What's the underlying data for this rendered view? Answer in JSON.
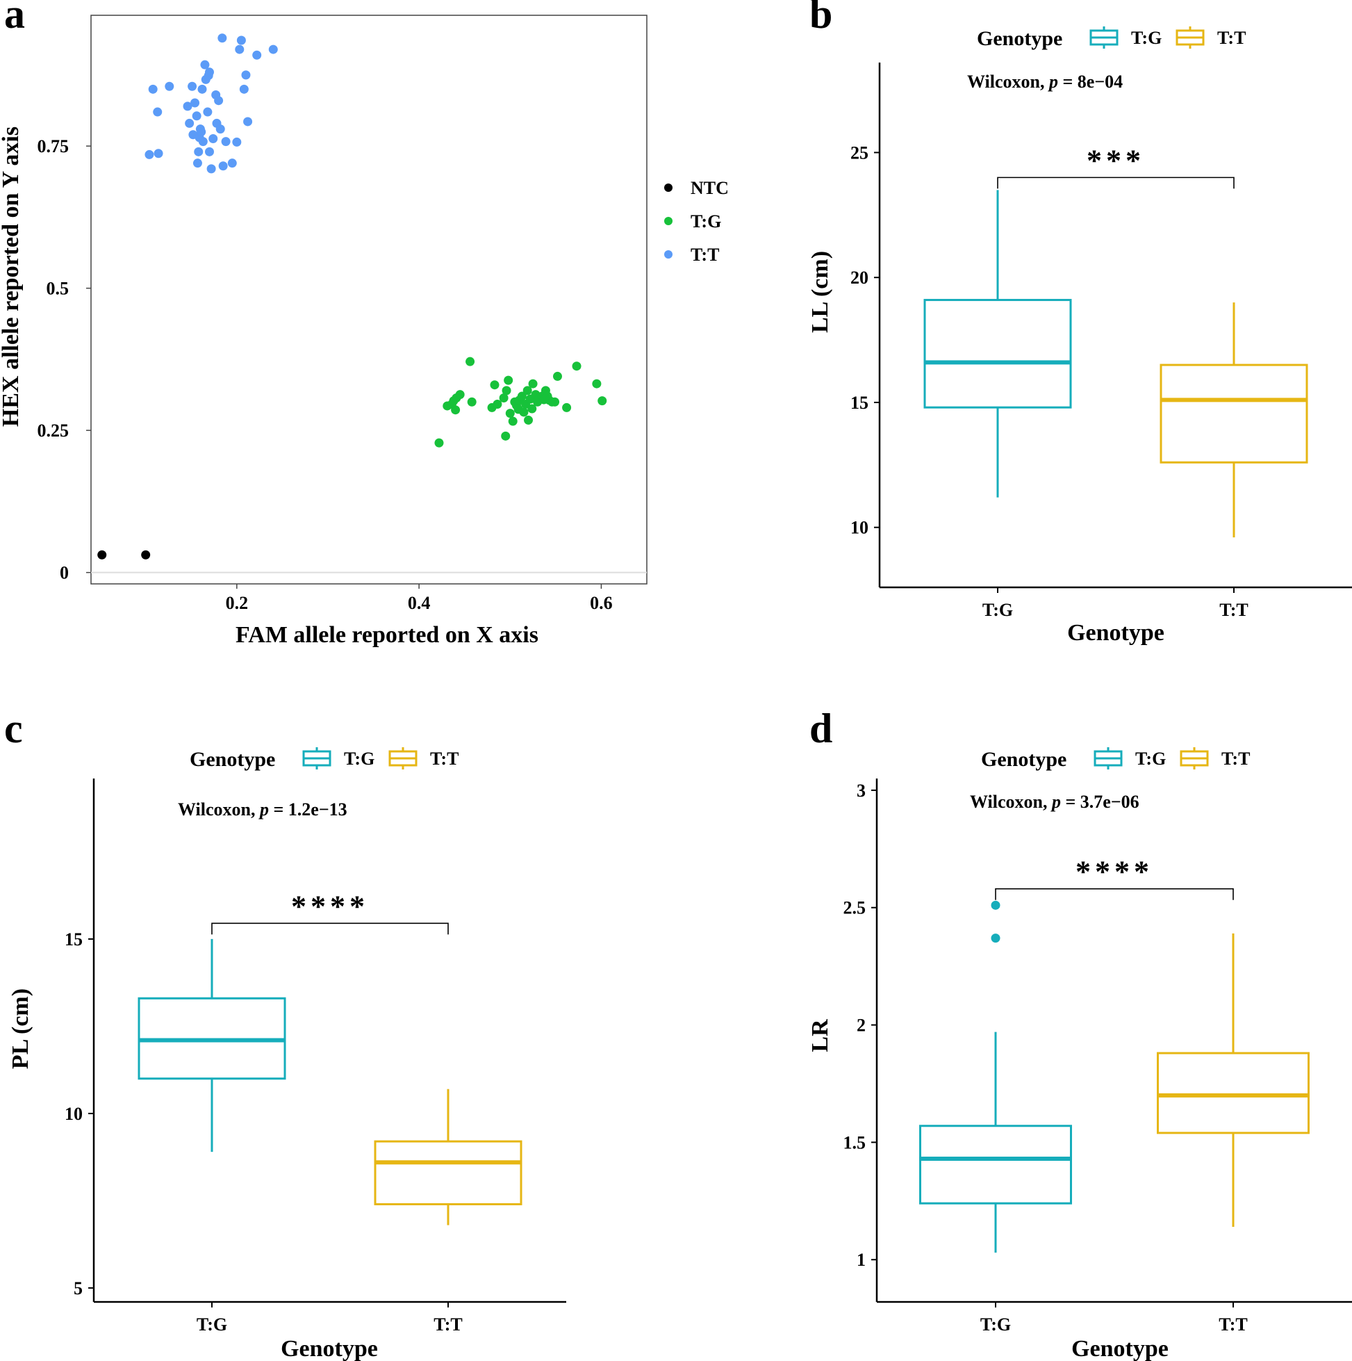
{
  "chart_data": [
    {
      "id": "a",
      "type": "scatter",
      "panel_label": "a",
      "xlabel": "FAM allele reported on X axis",
      "ylabel": "HEX allele reported on Y axis",
      "xlim": [
        0.04,
        0.65
      ],
      "ylim": [
        -0.02,
        0.98
      ],
      "xticks": [
        0.2,
        0.4,
        0.6
      ],
      "xtick_labels": [
        "0.2",
        "0.4",
        "0.6"
      ],
      "yticks": [
        0,
        0.25,
        0.5,
        0.75
      ],
      "ytick_labels": [
        "0",
        "0.25",
        "0.5",
        "0.75"
      ],
      "reference_line_y": 0,
      "legend": {
        "title": "",
        "position": "right"
      },
      "series": [
        {
          "name": "NTC",
          "color": "#000000",
          "points": [
            [
              0.052,
              0.031
            ],
            [
              0.1,
              0.031
            ]
          ]
        },
        {
          "name": "T:G",
          "color": "#17c13a",
          "points": [
            [
              0.422,
              0.228
            ],
            [
              0.431,
              0.293
            ],
            [
              0.436,
              0.296
            ],
            [
              0.438,
              0.302
            ],
            [
              0.44,
              0.286
            ],
            [
              0.441,
              0.307
            ],
            [
              0.445,
              0.313
            ],
            [
              0.456,
              0.371
            ],
            [
              0.458,
              0.3
            ],
            [
              0.48,
              0.29
            ],
            [
              0.483,
              0.33
            ],
            [
              0.486,
              0.296
            ],
            [
              0.493,
              0.307
            ],
            [
              0.495,
              0.24
            ],
            [
              0.496,
              0.32
            ],
            [
              0.498,
              0.338
            ],
            [
              0.5,
              0.28
            ],
            [
              0.503,
              0.266
            ],
            [
              0.505,
              0.3
            ],
            [
              0.507,
              0.294
            ],
            [
              0.509,
              0.287
            ],
            [
              0.51,
              0.303
            ],
            [
              0.513,
              0.31
            ],
            [
              0.515,
              0.282
            ],
            [
              0.517,
              0.296
            ],
            [
              0.519,
              0.32
            ],
            [
              0.52,
              0.268
            ],
            [
              0.522,
              0.305
            ],
            [
              0.524,
              0.288
            ],
            [
              0.525,
              0.332
            ],
            [
              0.528,
              0.313
            ],
            [
              0.53,
              0.3
            ],
            [
              0.532,
              0.307
            ],
            [
              0.535,
              0.31
            ],
            [
              0.537,
              0.304
            ],
            [
              0.539,
              0.32
            ],
            [
              0.541,
              0.31
            ],
            [
              0.543,
              0.303
            ],
            [
              0.546,
              0.3
            ],
            [
              0.549,
              0.3
            ],
            [
              0.552,
              0.345
            ],
            [
              0.562,
              0.29
            ],
            [
              0.573,
              0.363
            ],
            [
              0.595,
              0.332
            ],
            [
              0.601,
              0.302
            ]
          ]
        },
        {
          "name": "T:T",
          "color": "#5b9bf7",
          "points": [
            [
              0.104,
              0.735
            ],
            [
              0.108,
              0.85
            ],
            [
              0.113,
              0.81
            ],
            [
              0.114,
              0.737
            ],
            [
              0.126,
              0.855
            ],
            [
              0.146,
              0.82
            ],
            [
              0.148,
              0.79
            ],
            [
              0.151,
              0.855
            ],
            [
              0.152,
              0.77
            ],
            [
              0.154,
              0.826
            ],
            [
              0.156,
              0.803
            ],
            [
              0.157,
              0.72
            ],
            [
              0.158,
              0.74
            ],
            [
              0.159,
              0.765
            ],
            [
              0.16,
              0.78
            ],
            [
              0.161,
              0.775
            ],
            [
              0.162,
              0.85
            ],
            [
              0.163,
              0.758
            ],
            [
              0.165,
              0.893
            ],
            [
              0.166,
              0.867
            ],
            [
              0.168,
              0.81
            ],
            [
              0.169,
              0.874
            ],
            [
              0.17,
              0.88
            ],
            [
              0.17,
              0.74
            ],
            [
              0.172,
              0.71
            ],
            [
              0.174,
              0.763
            ],
            [
              0.177,
              0.84
            ],
            [
              0.178,
              0.79
            ],
            [
              0.18,
              0.83
            ],
            [
              0.182,
              0.78
            ],
            [
              0.184,
              0.94
            ],
            [
              0.185,
              0.715
            ],
            [
              0.188,
              0.758
            ],
            [
              0.195,
              0.72
            ],
            [
              0.2,
              0.757
            ],
            [
              0.203,
              0.92
            ],
            [
              0.205,
              0.936
            ],
            [
              0.208,
              0.85
            ],
            [
              0.21,
              0.875
            ],
            [
              0.212,
              0.793
            ],
            [
              0.222,
              0.91
            ],
            [
              0.24,
              0.92
            ]
          ]
        }
      ]
    },
    {
      "id": "b",
      "type": "boxplot",
      "panel_label": "b",
      "xlabel": "Genotype",
      "ylabel": "LL (cm)",
      "ylim": [
        7.6,
        28.6
      ],
      "yticks": [
        10,
        15,
        20,
        25
      ],
      "ytick_labels": [
        "10",
        "15",
        "20",
        "25"
      ],
      "legend": {
        "title": "Genotype",
        "position": "top",
        "labels": [
          "T:G",
          "T:T"
        ]
      },
      "annotation": {
        "method": "Wilcoxon",
        "p_label": "p",
        "p_value": " = 8e−04"
      },
      "significance": {
        "label": "***",
        "y": 24.0
      },
      "categories": [
        "T:G",
        "T:T"
      ],
      "boxes": [
        {
          "name": "T:G",
          "color": "#16adbb",
          "whisker_low": 11.2,
          "q1": 14.8,
          "median": 16.6,
          "q3": 19.1,
          "whisker_high": 23.5,
          "outliers": []
        },
        {
          "name": "T:T",
          "color": "#e6b614",
          "whisker_low": 9.6,
          "q1": 12.6,
          "median": 15.1,
          "q3": 16.5,
          "whisker_high": 19.0,
          "outliers": []
        }
      ]
    },
    {
      "id": "c",
      "type": "boxplot",
      "panel_label": "c",
      "xlabel": "Genotype",
      "ylabel": "PL (cm)",
      "ylim": [
        4.6,
        19.6
      ],
      "yticks": [
        5,
        10,
        15
      ],
      "ytick_labels": [
        "5",
        "10",
        "15"
      ],
      "legend": {
        "title": "Genotype",
        "position": "top",
        "labels": [
          "T:G",
          "T:T"
        ]
      },
      "annotation": {
        "method": "Wilcoxon",
        "p_label": "p",
        "p_value": " = 1.2e−13"
      },
      "significance": {
        "label": "****",
        "y": 15.45
      },
      "categories": [
        "T:G",
        "T:T"
      ],
      "boxes": [
        {
          "name": "T:G",
          "color": "#16adbb",
          "whisker_low": 8.9,
          "q1": 11.0,
          "median": 12.1,
          "q3": 13.3,
          "whisker_high": 15.0,
          "outliers": []
        },
        {
          "name": "T:T",
          "color": "#e6b614",
          "whisker_low": 6.8,
          "q1": 7.4,
          "median": 8.6,
          "q3": 9.2,
          "whisker_high": 10.7,
          "outliers": []
        }
      ]
    },
    {
      "id": "d",
      "type": "boxplot",
      "panel_label": "d",
      "xlabel": "Genotype",
      "ylabel": "LR",
      "ylim": [
        0.82,
        3.05
      ],
      "yticks": [
        1,
        1.5,
        2,
        2.5,
        3
      ],
      "ytick_labels": [
        "1",
        "1.5",
        "2",
        "2.5",
        "3"
      ],
      "legend": {
        "title": "Genotype",
        "position": "top",
        "labels": [
          "T:G",
          "T:T"
        ]
      },
      "annotation": {
        "method": "Wilcoxon",
        "p_label": "p",
        "p_value": " = 3.7e−06"
      },
      "significance": {
        "label": "****",
        "y": 2.58
      },
      "categories": [
        "T:G",
        "T:T"
      ],
      "boxes": [
        {
          "name": "T:G",
          "color": "#16adbb",
          "whisker_low": 1.03,
          "q1": 1.24,
          "median": 1.43,
          "q3": 1.57,
          "whisker_high": 1.97,
          "outliers": [
            2.37,
            2.51
          ]
        },
        {
          "name": "T:T",
          "color": "#e6b614",
          "whisker_low": 1.14,
          "q1": 1.54,
          "median": 1.7,
          "q3": 1.88,
          "whisker_high": 2.39,
          "outliers": []
        }
      ]
    }
  ]
}
